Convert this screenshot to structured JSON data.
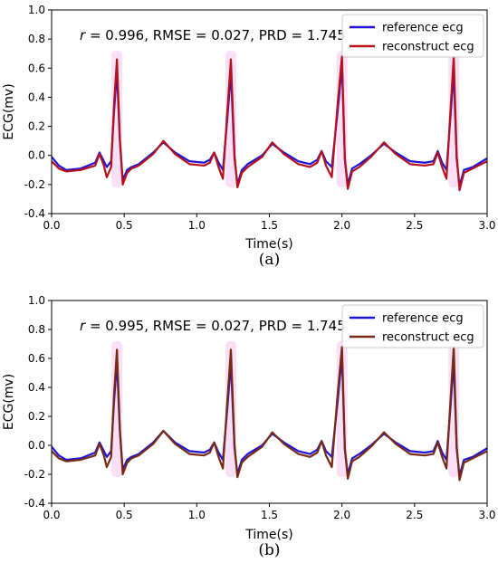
{
  "chart_data": [
    {
      "type": "line",
      "panel_label": "(a)",
      "xlabel": "Time(s)",
      "ylabel": "ECG(mv)",
      "xlim": [
        0.0,
        3.0
      ],
      "ylim": [
        -0.4,
        1.0
      ],
      "xticks": [
        "0.0",
        "0.5",
        "1.0",
        "1.5",
        "2.0",
        "2.5",
        "3.0"
      ],
      "yticks": [
        "-0.4",
        "-0.2",
        "0.0",
        "0.2",
        "0.4",
        "0.6",
        "0.8",
        "1.0"
      ],
      "annotation": {
        "r_symbol": "r",
        "text": " = 0.996, RMSE = 0.027, PRD = 1.745"
      },
      "legend": "top-right",
      "grid": false,
      "beat_times": [
        0.45,
        1.235,
        2.0,
        2.77
      ],
      "series": [
        {
          "name": "reference ecg",
          "color": "#1f14d6",
          "x": [
            0.0,
            0.05,
            0.1,
            0.2,
            0.3,
            0.33,
            0.36,
            0.38,
            0.41,
            0.43,
            0.45,
            0.47,
            0.49,
            0.52,
            0.55,
            0.6,
            0.7,
            0.77,
            0.85,
            0.95,
            1.05,
            1.09,
            1.12,
            1.15,
            1.18,
            1.21,
            1.235,
            1.26,
            1.28,
            1.31,
            1.35,
            1.45,
            1.52,
            1.6,
            1.7,
            1.78,
            1.83,
            1.86,
            1.89,
            1.93,
            1.97,
            2.0,
            2.02,
            2.04,
            2.07,
            2.12,
            2.2,
            2.29,
            2.37,
            2.47,
            2.57,
            2.63,
            2.66,
            2.69,
            2.72,
            2.75,
            2.77,
            2.79,
            2.81,
            2.84,
            2.9,
            3.0
          ],
          "values": [
            -0.01,
            -0.07,
            -0.1,
            -0.09,
            -0.05,
            0.02,
            -0.04,
            -0.08,
            -0.04,
            0.3,
            0.58,
            0.1,
            -0.17,
            -0.1,
            -0.08,
            -0.06,
            0.02,
            0.09,
            0.02,
            -0.04,
            -0.05,
            -0.03,
            0.02,
            -0.05,
            -0.1,
            0.25,
            0.57,
            -0.02,
            -0.2,
            -0.1,
            -0.06,
            0.0,
            0.08,
            0.02,
            -0.04,
            -0.06,
            -0.03,
            0.03,
            -0.04,
            -0.08,
            0.3,
            0.62,
            -0.03,
            -0.2,
            -0.09,
            -0.06,
            0.0,
            0.08,
            0.02,
            -0.04,
            -0.05,
            -0.04,
            0.03,
            -0.05,
            -0.1,
            0.3,
            0.58,
            -0.02,
            -0.21,
            -0.1,
            -0.08,
            -0.02
          ]
        },
        {
          "name": "reconstruct ecg",
          "color": "#b5121b",
          "x": [
            0.0,
            0.05,
            0.1,
            0.2,
            0.3,
            0.33,
            0.36,
            0.38,
            0.41,
            0.43,
            0.45,
            0.47,
            0.49,
            0.52,
            0.55,
            0.6,
            0.7,
            0.77,
            0.85,
            0.95,
            1.05,
            1.09,
            1.12,
            1.15,
            1.18,
            1.21,
            1.235,
            1.26,
            1.28,
            1.31,
            1.35,
            1.45,
            1.52,
            1.6,
            1.7,
            1.78,
            1.83,
            1.86,
            1.89,
            1.93,
            1.97,
            2.0,
            2.02,
            2.04,
            2.07,
            2.12,
            2.2,
            2.29,
            2.37,
            2.47,
            2.57,
            2.63,
            2.66,
            2.69,
            2.72,
            2.75,
            2.77,
            2.79,
            2.81,
            2.84,
            2.9,
            3.0
          ],
          "values": [
            -0.04,
            -0.09,
            -0.11,
            -0.1,
            -0.07,
            0.01,
            -0.07,
            -0.15,
            -0.08,
            0.35,
            0.66,
            0.12,
            -0.2,
            -0.12,
            -0.09,
            -0.07,
            0.01,
            0.1,
            0.01,
            -0.06,
            -0.07,
            -0.05,
            0.02,
            -0.08,
            -0.16,
            0.3,
            0.66,
            0.0,
            -0.22,
            -0.12,
            -0.08,
            -0.01,
            0.09,
            0.01,
            -0.06,
            -0.08,
            -0.05,
            0.03,
            -0.07,
            -0.15,
            0.35,
            0.68,
            -0.02,
            -0.23,
            -0.11,
            -0.08,
            -0.01,
            0.09,
            0.01,
            -0.06,
            -0.07,
            -0.06,
            0.02,
            -0.08,
            -0.16,
            0.35,
            0.68,
            0.0,
            -0.24,
            -0.12,
            -0.09,
            -0.04
          ]
        }
      ]
    },
    {
      "type": "line",
      "panel_label": "(b)",
      "xlabel": "Time(s)",
      "ylabel": "ECG(mv)",
      "xlim": [
        0.0,
        3.0
      ],
      "ylim": [
        -0.4,
        1.0
      ],
      "xticks": [
        "0.0",
        "0.5",
        "1.0",
        "1.5",
        "2.0",
        "2.5",
        "3.0"
      ],
      "yticks": [
        "-0.4",
        "-0.2",
        "0.0",
        "0.2",
        "0.4",
        "0.6",
        "0.8",
        "1.0"
      ],
      "annotation": {
        "r_symbol": "r",
        "text": " = 0.995, RMSE = 0.027, PRD = 1.745"
      },
      "legend": "top-right",
      "grid": false,
      "beat_times": [
        0.45,
        1.235,
        2.0,
        2.77
      ],
      "series": [
        {
          "name": "reference ecg",
          "color": "#1f14d6",
          "x": [
            0.0,
            0.05,
            0.1,
            0.2,
            0.3,
            0.33,
            0.36,
            0.38,
            0.41,
            0.43,
            0.45,
            0.47,
            0.49,
            0.52,
            0.55,
            0.6,
            0.7,
            0.77,
            0.85,
            0.95,
            1.05,
            1.09,
            1.12,
            1.15,
            1.18,
            1.21,
            1.235,
            1.26,
            1.28,
            1.31,
            1.35,
            1.45,
            1.52,
            1.6,
            1.7,
            1.78,
            1.83,
            1.86,
            1.89,
            1.93,
            1.97,
            2.0,
            2.02,
            2.04,
            2.07,
            2.12,
            2.2,
            2.29,
            2.37,
            2.47,
            2.57,
            2.63,
            2.66,
            2.69,
            2.72,
            2.75,
            2.77,
            2.79,
            2.81,
            2.84,
            2.9,
            3.0
          ],
          "values": [
            -0.01,
            -0.07,
            -0.1,
            -0.09,
            -0.05,
            0.02,
            -0.04,
            -0.08,
            -0.04,
            0.3,
            0.58,
            0.1,
            -0.17,
            -0.1,
            -0.08,
            -0.06,
            0.02,
            0.1,
            0.02,
            -0.04,
            -0.05,
            -0.03,
            0.02,
            -0.05,
            -0.1,
            0.25,
            0.57,
            -0.02,
            -0.2,
            -0.1,
            -0.06,
            0.0,
            0.08,
            0.02,
            -0.04,
            -0.06,
            -0.03,
            0.03,
            -0.04,
            -0.08,
            0.3,
            0.62,
            -0.03,
            -0.2,
            -0.09,
            -0.06,
            0.0,
            0.08,
            0.02,
            -0.04,
            -0.05,
            -0.04,
            0.03,
            -0.05,
            -0.1,
            0.3,
            0.58,
            -0.02,
            -0.21,
            -0.1,
            -0.08,
            -0.02
          ]
        },
        {
          "name": "reconstruct ecg",
          "color": "#7a2a12",
          "x": [
            0.0,
            0.05,
            0.1,
            0.2,
            0.3,
            0.33,
            0.36,
            0.38,
            0.41,
            0.43,
            0.45,
            0.47,
            0.49,
            0.52,
            0.55,
            0.6,
            0.7,
            0.77,
            0.85,
            0.95,
            1.05,
            1.09,
            1.12,
            1.15,
            1.18,
            1.21,
            1.235,
            1.26,
            1.28,
            1.31,
            1.35,
            1.45,
            1.52,
            1.6,
            1.7,
            1.78,
            1.83,
            1.86,
            1.89,
            1.93,
            1.97,
            2.0,
            2.02,
            2.04,
            2.07,
            2.12,
            2.2,
            2.29,
            2.37,
            2.47,
            2.57,
            2.63,
            2.66,
            2.69,
            2.72,
            2.75,
            2.77,
            2.79,
            2.81,
            2.84,
            2.9,
            3.0
          ],
          "values": [
            -0.04,
            -0.09,
            -0.11,
            -0.1,
            -0.07,
            0.01,
            -0.07,
            -0.15,
            -0.08,
            0.35,
            0.66,
            0.12,
            -0.2,
            -0.12,
            -0.09,
            -0.07,
            0.01,
            0.1,
            0.01,
            -0.06,
            -0.07,
            -0.05,
            0.02,
            -0.08,
            -0.16,
            0.3,
            0.66,
            0.0,
            -0.22,
            -0.12,
            -0.08,
            -0.01,
            0.09,
            0.01,
            -0.06,
            -0.08,
            -0.05,
            0.03,
            -0.07,
            -0.15,
            0.35,
            0.68,
            -0.02,
            -0.23,
            -0.11,
            -0.08,
            -0.01,
            0.09,
            0.01,
            -0.06,
            -0.07,
            -0.06,
            0.02,
            -0.08,
            -0.16,
            0.35,
            0.68,
            0.0,
            -0.24,
            -0.12,
            -0.09,
            -0.04
          ]
        }
      ]
    }
  ]
}
